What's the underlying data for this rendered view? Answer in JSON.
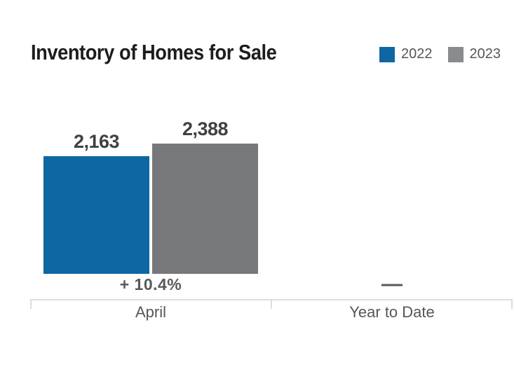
{
  "title": "Inventory of Homes for Sale",
  "legend": {
    "items": [
      {
        "label": "2022",
        "color": "#0e67a2"
      },
      {
        "label": "2023",
        "color": "#8a8b8e"
      }
    ]
  },
  "chart_data": {
    "type": "bar",
    "title": "Inventory of Homes for Sale",
    "categories": [
      "April",
      "Year to Date"
    ],
    "series": [
      {
        "name": "2022",
        "color": "#0e67a2",
        "values": [
          2163,
          null
        ]
      },
      {
        "name": "2023",
        "color": "#77787b",
        "values": [
          2388,
          null
        ]
      }
    ],
    "value_labels": [
      "2,163",
      "2,388"
    ],
    "change_labels": {
      "april": "+ 10.4%",
      "year_to_date": "—"
    },
    "ylim": [
      0,
      2450
    ],
    "grid": false,
    "legend_position": "top-right",
    "axis_color": "#dcdddf"
  }
}
